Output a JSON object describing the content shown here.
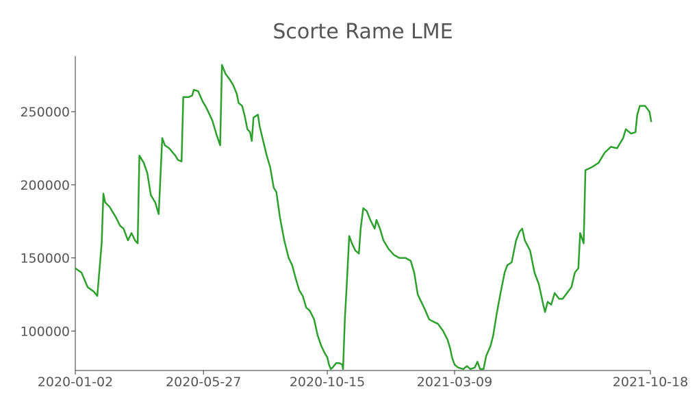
{
  "chart_data": {
    "type": "line",
    "title": "Scorte Rame LME",
    "xlabel": "",
    "ylabel": "",
    "x_type": "date",
    "x_ticks": [
      "2020-01-02",
      "2020-05-27",
      "2020-10-15",
      "2021-03-09",
      "2021-10-18"
    ],
    "y_ticks": [
      100000,
      150000,
      200000,
      250000
    ],
    "xlim": [
      "2020-01-02",
      "2021-10-18"
    ],
    "ylim": [
      73000,
      288000
    ],
    "grid": false,
    "legend": "none",
    "series": [
      {
        "color": "#2ca02c",
        "points": [
          [
            "2020-01-02",
            143000
          ],
          [
            "2020-01-09",
            140000
          ],
          [
            "2020-01-16",
            130000
          ],
          [
            "2020-01-23",
            127000
          ],
          [
            "2020-01-27",
            124000
          ],
          [
            "2020-02-01",
            160000
          ],
          [
            "2020-02-03",
            194000
          ],
          [
            "2020-02-05",
            188000
          ],
          [
            "2020-02-10",
            185000
          ],
          [
            "2020-02-17",
            178000
          ],
          [
            "2020-02-22",
            172000
          ],
          [
            "2020-02-26",
            170000
          ],
          [
            "2020-03-02",
            162000
          ],
          [
            "2020-03-06",
            167000
          ],
          [
            "2020-03-10",
            162000
          ],
          [
            "2020-03-13",
            160000
          ],
          [
            "2020-03-15",
            220000
          ],
          [
            "2020-03-20",
            215000
          ],
          [
            "2020-03-24",
            208000
          ],
          [
            "2020-03-28",
            193000
          ],
          [
            "2020-04-02",
            188000
          ],
          [
            "2020-04-06",
            180000
          ],
          [
            "2020-04-10",
            232000
          ],
          [
            "2020-04-13",
            227000
          ],
          [
            "2020-04-18",
            225000
          ],
          [
            "2020-04-22",
            222000
          ],
          [
            "2020-04-25",
            220000
          ],
          [
            "2020-04-28",
            217000
          ],
          [
            "2020-05-02",
            216000
          ],
          [
            "2020-05-04",
            260000
          ],
          [
            "2020-05-10",
            260000
          ],
          [
            "2020-05-14",
            261000
          ],
          [
            "2020-05-16",
            265000
          ],
          [
            "2020-05-21",
            264000
          ],
          [
            "2020-05-26",
            257000
          ],
          [
            "2020-05-30",
            253000
          ],
          [
            "2020-06-03",
            248000
          ],
          [
            "2020-06-06",
            244000
          ],
          [
            "2020-06-11",
            234000
          ],
          [
            "2020-06-15",
            227000
          ],
          [
            "2020-06-17",
            282000
          ],
          [
            "2020-06-21",
            276000
          ],
          [
            "2020-06-26",
            272000
          ],
          [
            "2020-06-30",
            268000
          ],
          [
            "2020-07-04",
            262000
          ],
          [
            "2020-07-06",
            256000
          ],
          [
            "2020-07-10",
            254000
          ],
          [
            "2020-07-13",
            247000
          ],
          [
            "2020-07-16",
            238000
          ],
          [
            "2020-07-19",
            236000
          ],
          [
            "2020-07-21",
            230000
          ],
          [
            "2020-07-23",
            246000
          ],
          [
            "2020-07-28",
            248000
          ],
          [
            "2020-07-30",
            240000
          ],
          [
            "2020-08-03",
            230000
          ],
          [
            "2020-08-07",
            220000
          ],
          [
            "2020-08-11",
            212000
          ],
          [
            "2020-08-15",
            198000
          ],
          [
            "2020-08-18",
            195000
          ],
          [
            "2020-08-22",
            178000
          ],
          [
            "2020-08-27",
            162000
          ],
          [
            "2020-09-01",
            150000
          ],
          [
            "2020-09-05",
            145000
          ],
          [
            "2020-09-09",
            136000
          ],
          [
            "2020-09-13",
            128000
          ],
          [
            "2020-09-17",
            124000
          ],
          [
            "2020-09-21",
            116000
          ],
          [
            "2020-09-25",
            114000
          ],
          [
            "2020-09-30",
            108000
          ],
          [
            "2020-10-04",
            97000
          ],
          [
            "2020-10-08",
            90000
          ],
          [
            "2020-10-12",
            85000
          ],
          [
            "2020-10-15",
            82000
          ],
          [
            "2020-10-17",
            77000
          ],
          [
            "2020-10-19",
            74000
          ],
          [
            "2020-10-21",
            75000
          ],
          [
            "2020-10-25",
            78000
          ],
          [
            "2020-10-29",
            78000
          ],
          [
            "2020-11-01",
            77000
          ],
          [
            "2020-11-02",
            74000
          ],
          [
            "2020-11-04",
            108000
          ],
          [
            "2020-11-06",
            130000
          ],
          [
            "2020-11-09",
            165000
          ],
          [
            "2020-11-12",
            160000
          ],
          [
            "2020-11-16",
            155000
          ],
          [
            "2020-11-20",
            153000
          ],
          [
            "2020-11-22",
            170000
          ],
          [
            "2020-11-25",
            184000
          ],
          [
            "2020-11-29",
            182000
          ],
          [
            "2020-12-03",
            176000
          ],
          [
            "2020-12-08",
            170000
          ],
          [
            "2020-12-10",
            176000
          ],
          [
            "2020-12-14",
            170000
          ],
          [
            "2020-12-18",
            162000
          ],
          [
            "2020-12-24",
            156000
          ],
          [
            "2020-12-30",
            152000
          ],
          [
            "2021-01-05",
            150000
          ],
          [
            "2021-01-12",
            150000
          ],
          [
            "2021-01-18",
            148000
          ],
          [
            "2021-01-22",
            140000
          ],
          [
            "2021-01-26",
            125000
          ],
          [
            "2021-01-30",
            120000
          ],
          [
            "2021-02-03",
            115000
          ],
          [
            "2021-02-08",
            108000
          ],
          [
            "2021-02-14",
            106000
          ],
          [
            "2021-02-18",
            105000
          ],
          [
            "2021-02-24",
            100000
          ],
          [
            "2021-03-01",
            94000
          ],
          [
            "2021-03-04",
            88000
          ],
          [
            "2021-03-06",
            82000
          ],
          [
            "2021-03-09",
            77000
          ],
          [
            "2021-03-13",
            75000
          ],
          [
            "2021-03-19",
            74000
          ],
          [
            "2021-03-23",
            76000
          ],
          [
            "2021-03-27",
            74000
          ],
          [
            "2021-04-01",
            75000
          ],
          [
            "2021-04-04",
            79000
          ],
          [
            "2021-04-07",
            74000
          ],
          [
            "2021-04-11",
            74000
          ],
          [
            "2021-04-14",
            83000
          ],
          [
            "2021-04-19",
            90000
          ],
          [
            "2021-04-22",
            97000
          ],
          [
            "2021-04-26",
            112000
          ],
          [
            "2021-04-30",
            125000
          ],
          [
            "2021-05-05",
            140000
          ],
          [
            "2021-05-08",
            145000
          ],
          [
            "2021-05-13",
            147000
          ],
          [
            "2021-05-18",
            162000
          ],
          [
            "2021-05-22",
            168000
          ],
          [
            "2021-05-25",
            170000
          ],
          [
            "2021-05-28",
            162000
          ],
          [
            "2021-06-03",
            155000
          ],
          [
            "2021-06-08",
            140000
          ],
          [
            "2021-06-13",
            132000
          ],
          [
            "2021-06-18",
            118000
          ],
          [
            "2021-06-20",
            113000
          ],
          [
            "2021-06-23",
            120000
          ],
          [
            "2021-06-27",
            118000
          ],
          [
            "2021-07-01",
            126000
          ],
          [
            "2021-07-06",
            122000
          ],
          [
            "2021-07-10",
            122000
          ],
          [
            "2021-07-15",
            126000
          ],
          [
            "2021-07-20",
            130000
          ],
          [
            "2021-07-24",
            140000
          ],
          [
            "2021-07-28",
            143000
          ],
          [
            "2021-07-30",
            167000
          ],
          [
            "2021-08-03",
            160000
          ],
          [
            "2021-08-05",
            210000
          ],
          [
            "2021-08-12",
            212000
          ],
          [
            "2021-08-20",
            215000
          ],
          [
            "2021-08-27",
            222000
          ],
          [
            "2021-09-03",
            226000
          ],
          [
            "2021-09-10",
            225000
          ],
          [
            "2021-09-17",
            232000
          ],
          [
            "2021-09-20",
            238000
          ],
          [
            "2021-09-26",
            235000
          ],
          [
            "2021-10-01",
            236000
          ],
          [
            "2021-10-03",
            248000
          ],
          [
            "2021-10-06",
            254000
          ],
          [
            "2021-10-12",
            254000
          ],
          [
            "2021-10-17",
            250000
          ],
          [
            "2021-10-19",
            243000
          ]
        ]
      }
    ]
  }
}
